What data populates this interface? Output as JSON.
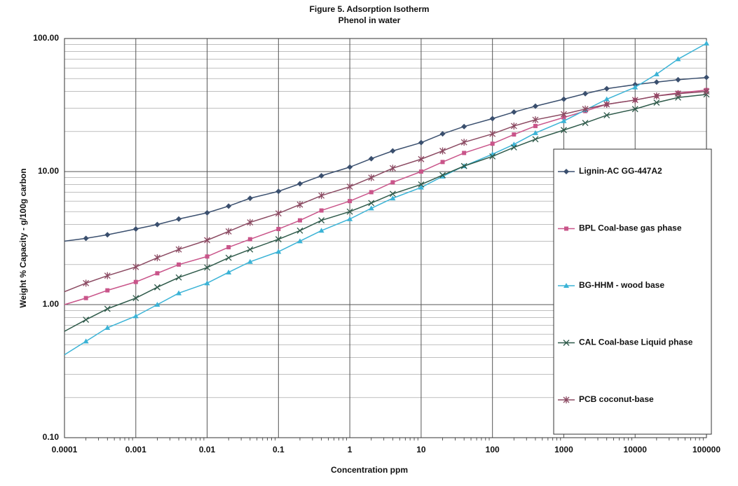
{
  "chart_data": {
    "type": "line",
    "title": "Figure 5. Adsorption Isotherm",
    "subtitle": "Phenol in water",
    "x_label": "Concentration ppm",
    "y_label": "Weight % Capacity - g/100g carbon",
    "log_x": true,
    "log_y": true,
    "grid": true,
    "legend": "right",
    "xlim": [
      0.0001,
      100000
    ],
    "xticks": [
      0.0001,
      0.001,
      0.01,
      0.1,
      1,
      10,
      100,
      1000,
      10000,
      100000
    ],
    "ylim": [
      0.1,
      100
    ],
    "yticks": [
      {
        "value": 0.1,
        "label": "0.10"
      },
      {
        "value": 1,
        "label": "1.00"
      },
      {
        "value": 10,
        "label": "10.00"
      },
      {
        "value": 100,
        "label": "100.00"
      }
    ],
    "x": [
      0.0001,
      0.0002,
      0.0004,
      0.001,
      0.002,
      0.004,
      0.01,
      0.02,
      0.04,
      0.1,
      0.2,
      0.4,
      1,
      2,
      4,
      10,
      20,
      40,
      100,
      200,
      400,
      1000,
      2000,
      4000,
      10000,
      20000,
      40000,
      100000
    ],
    "series": [
      {
        "name": "Lignin-AC GG-447A2",
        "color": "#3a4f6e",
        "marker": "diamond",
        "values": [
          3.0,
          3.15,
          3.35,
          3.7,
          4.0,
          4.4,
          4.9,
          5.5,
          6.3,
          7.1,
          8.1,
          9.3,
          10.8,
          12.5,
          14.3,
          16.5,
          19.2,
          21.8,
          25,
          28,
          31,
          35,
          38.5,
          42,
          45,
          47,
          49,
          51
        ]
      },
      {
        "name": "BPL Coal-base gas phase",
        "color": "#c9558a",
        "marker": "square",
        "values": [
          1.0,
          1.12,
          1.28,
          1.48,
          1.72,
          2.0,
          2.3,
          2.7,
          3.1,
          3.7,
          4.3,
          5.1,
          6.0,
          7.0,
          8.3,
          10.0,
          11.8,
          13.8,
          16.2,
          19,
          22,
          25.5,
          28.5,
          32,
          34.5,
          37,
          39,
          41
        ]
      },
      {
        "name": "BG-HHM  - wood base",
        "color": "#3bb3d6",
        "marker": "triangle",
        "values": [
          0.42,
          0.53,
          0.67,
          0.82,
          1.0,
          1.22,
          1.45,
          1.75,
          2.1,
          2.5,
          3.0,
          3.6,
          4.4,
          5.3,
          6.3,
          7.6,
          9.2,
          11.0,
          13.5,
          16,
          19.5,
          24,
          29,
          35,
          43,
          54,
          70,
          92
        ]
      },
      {
        "name": "CAL Coal-base Liquid phase",
        "color": "#2e5a4a",
        "marker": "x",
        "values": [
          0.63,
          0.77,
          0.93,
          1.12,
          1.35,
          1.6,
          1.9,
          2.25,
          2.6,
          3.1,
          3.6,
          4.3,
          5.0,
          5.8,
          6.8,
          8.0,
          9.4,
          11.0,
          13.0,
          15.2,
          17.5,
          20.5,
          23.2,
          26.5,
          29.5,
          33,
          36,
          38
        ]
      },
      {
        "name": "PCB coconut-base",
        "color": "#8b4a62",
        "marker": "star",
        "values": [
          1.25,
          1.45,
          1.65,
          1.92,
          2.25,
          2.6,
          3.05,
          3.55,
          4.15,
          4.85,
          5.65,
          6.6,
          7.7,
          9.0,
          10.6,
          12.4,
          14.3,
          16.6,
          19.2,
          22,
          24.5,
          27,
          29.5,
          32,
          34.5,
          37,
          38.5,
          40
        ]
      }
    ]
  }
}
